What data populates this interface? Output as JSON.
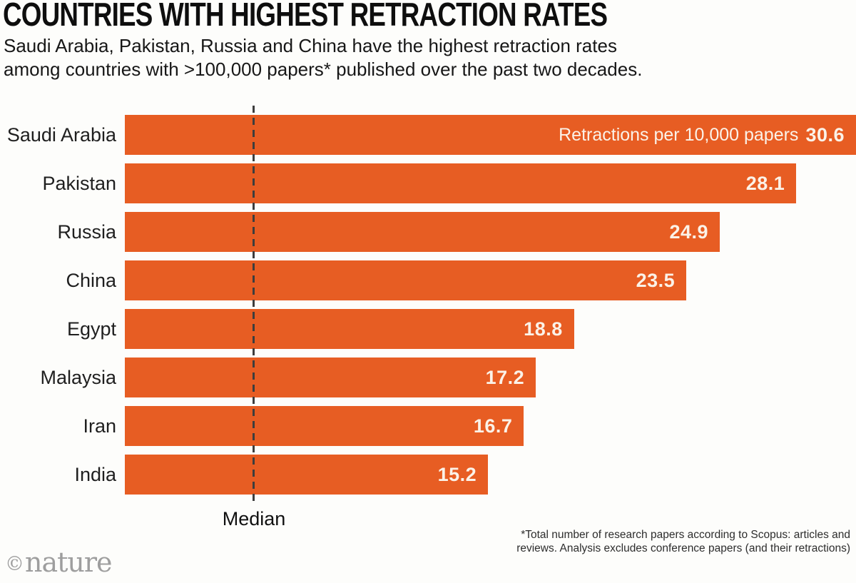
{
  "header": {
    "title": "COUNTRIES WITH HIGHEST RETRACTION RATES",
    "subtitle_line1": "Saudi Arabia, Pakistan, Russia and China have the highest retraction rates",
    "subtitle_line2": "among countries with >100,000 papers* published over the past two decades."
  },
  "chart_data": {
    "type": "bar",
    "orientation": "horizontal",
    "title": "Countries with highest retraction rates",
    "value_axis_label": "Retractions per 10,000 papers",
    "categories": [
      "Saudi Arabia",
      "Pakistan",
      "Russia",
      "China",
      "Egypt",
      "Malaysia",
      "Iran",
      "India"
    ],
    "values": [
      30.6,
      28.1,
      24.9,
      23.5,
      18.8,
      17.2,
      16.7,
      15.2
    ],
    "xlim": [
      0,
      30.6
    ],
    "grid": false,
    "bar_color": "#e75d23",
    "bar_text_color": "#fbf2e8",
    "median_value": 5.4,
    "median_label": "Median",
    "value_labels_inside_bars": true
  },
  "footnote": {
    "line1": "*Total number of research papers according to Scopus: articles and",
    "line2": "reviews. Analysis excludes conference papers (and their retractions)"
  },
  "branding": {
    "copyright_symbol": "©",
    "wordmark": "nature",
    "color": "#9e9e9e"
  }
}
